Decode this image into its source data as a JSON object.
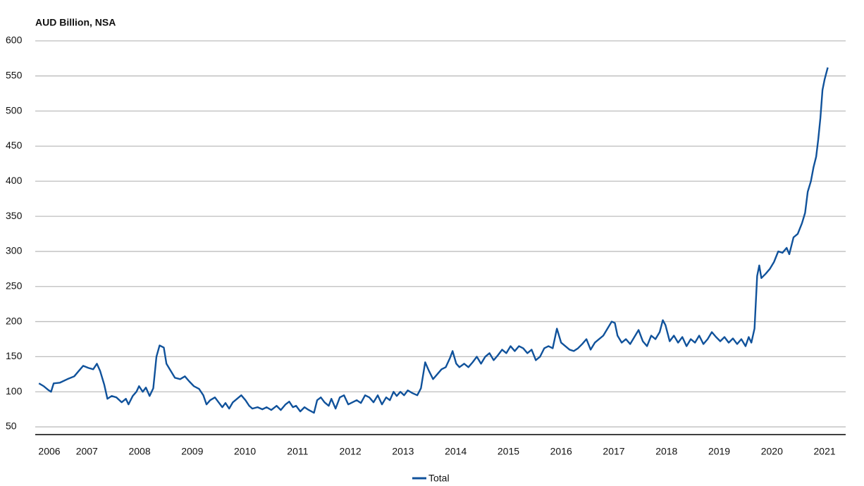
{
  "chart_data": {
    "type": "line",
    "title": "AUD Billion, NSA",
    "xlim": [
      2006.52,
      2021.9
    ],
    "ylim": [
      39,
      600
    ],
    "yticks": [
      50,
      100,
      150,
      200,
      250,
      300,
      350,
      400,
      450,
      500,
      550,
      600
    ],
    "xticks": [
      {
        "value": 2006.5,
        "label": "2006"
      },
      {
        "value": 2007.5,
        "label": "2007"
      },
      {
        "value": 2008.5,
        "label": "2008"
      },
      {
        "value": 2009.5,
        "label": "2009"
      },
      {
        "value": 2010.5,
        "label": "2010"
      },
      {
        "value": 2011.5,
        "label": "2011"
      },
      {
        "value": 2012.5,
        "label": "2012"
      },
      {
        "value": 2013.5,
        "label": "2013"
      },
      {
        "value": 2014.5,
        "label": "2014"
      },
      {
        "value": 2015.5,
        "label": "2015"
      },
      {
        "value": 2016.5,
        "label": "2016"
      },
      {
        "value": 2017.5,
        "label": "2017"
      },
      {
        "value": 2018.5,
        "label": "2018"
      },
      {
        "value": 2019.5,
        "label": "2019"
      },
      {
        "value": 2020.5,
        "label": "2020"
      },
      {
        "value": 2021.5,
        "label": "2021"
      }
    ],
    "grid": true,
    "legend": "bottom",
    "x": [
      2006.59,
      2006.68,
      2006.76,
      2006.82,
      2006.87,
      2006.99,
      2007.13,
      2007.26,
      2007.35,
      2007.43,
      2007.53,
      2007.62,
      2007.69,
      2007.75,
      2007.83,
      2007.89,
      2007.97,
      2008.06,
      2008.16,
      2008.24,
      2008.29,
      2008.37,
      2008.44,
      2008.49,
      2008.56,
      2008.62,
      2008.69,
      2008.76,
      2008.82,
      2008.88,
      2008.96,
      2009.01,
      2009.09,
      2009.17,
      2009.27,
      2009.36,
      2009.44,
      2009.53,
      2009.63,
      2009.71,
      2009.77,
      2009.84,
      2009.93,
      2010.0,
      2010.07,
      2010.13,
      2010.2,
      2010.27,
      2010.35,
      2010.43,
      2010.51,
      2010.58,
      2010.64,
      2010.74,
      2010.83,
      2010.91,
      2011.0,
      2011.1,
      2011.18,
      2011.27,
      2011.34,
      2011.41,
      2011.47,
      2011.55,
      2011.63,
      2011.71,
      2011.81,
      2011.87,
      2011.94,
      2012.01,
      2012.09,
      2012.14,
      2012.22,
      2012.3,
      2012.38,
      2012.46,
      2012.54,
      2012.62,
      2012.7,
      2012.78,
      2012.86,
      2012.94,
      2013.02,
      2013.1,
      2013.18,
      2013.25,
      2013.32,
      2013.38,
      2013.45,
      2013.52,
      2013.59,
      2013.68,
      2013.77,
      2013.84,
      2013.92,
      2013.99,
      2014.07,
      2014.15,
      2014.23,
      2014.31,
      2014.39,
      2014.44,
      2014.51,
      2014.57,
      2014.66,
      2014.74,
      2014.82,
      2014.9,
      2014.98,
      2015.06,
      2015.14,
      2015.22,
      2015.3,
      2015.38,
      2015.46,
      2015.54,
      2015.62,
      2015.7,
      2015.78,
      2015.86,
      2015.94,
      2016.02,
      2016.1,
      2016.18,
      2016.26,
      2016.34,
      2016.42,
      2016.5,
      2016.58,
      2016.66,
      2016.74,
      2016.82,
      2016.9,
      2016.98,
      2017.06,
      2017.14,
      2017.22,
      2017.3,
      2017.38,
      2017.46,
      2017.52,
      2017.57,
      2017.65,
      2017.73,
      2017.81,
      2017.89,
      2017.97,
      2018.05,
      2018.13,
      2018.21,
      2018.29,
      2018.37,
      2018.43,
      2018.48,
      2018.56,
      2018.64,
      2018.72,
      2018.8,
      2018.88,
      2018.96,
      2019.04,
      2019.12,
      2019.2,
      2019.28,
      2019.36,
      2019.44,
      2019.52,
      2019.6,
      2019.68,
      2019.76,
      2019.84,
      2019.92,
      2020.0,
      2020.06,
      2020.11,
      2020.17,
      2020.22,
      2020.26,
      2020.3,
      2020.38,
      2020.46,
      2020.54,
      2020.62,
      2020.7,
      2020.78,
      2020.83,
      2020.91,
      2020.99,
      2021.07,
      2021.13,
      2021.18,
      2021.24,
      2021.29,
      2021.34,
      2021.38,
      2021.42,
      2021.46,
      2021.5,
      2021.56
    ],
    "series": [
      {
        "name": "Total",
        "color": "#10529b",
        "values": [
          112,
          108,
          103,
          100,
          112,
          113,
          118,
          122,
          130,
          137,
          134,
          132,
          140,
          130,
          110,
          90,
          94,
          92,
          85,
          90,
          82,
          94,
          100,
          108,
          100,
          106,
          94,
          105,
          150,
          166,
          163,
          140,
          130,
          120,
          118,
          122,
          115,
          108,
          104,
          95,
          82,
          88,
          92,
          85,
          78,
          84,
          76,
          85,
          90,
          95,
          88,
          80,
          76,
          78,
          75,
          78,
          74,
          80,
          74,
          82,
          86,
          78,
          80,
          72,
          78,
          74,
          70,
          88,
          92,
          85,
          80,
          90,
          76,
          92,
          95,
          82,
          85,
          88,
          84,
          95,
          92,
          85,
          95,
          82,
          92,
          88,
          100,
          94,
          100,
          95,
          102,
          98,
          95,
          105,
          142,
          130,
          118,
          125,
          132,
          135,
          148,
          158,
          140,
          135,
          140,
          135,
          142,
          150,
          140,
          150,
          155,
          145,
          152,
          160,
          155,
          165,
          158,
          165,
          162,
          155,
          160,
          145,
          150,
          162,
          165,
          162,
          190,
          170,
          165,
          160,
          158,
          162,
          168,
          175,
          160,
          170,
          175,
          180,
          190,
          200,
          198,
          180,
          170,
          175,
          168,
          178,
          188,
          172,
          165,
          180,
          175,
          185,
          202,
          195,
          172,
          180,
          170,
          178,
          165,
          175,
          170,
          180,
          168,
          175,
          185,
          178,
          172,
          178,
          170,
          176,
          168,
          175,
          165,
          178,
          170,
          190,
          265,
          280,
          262,
          268,
          275,
          285,
          300,
          298,
          305,
          296,
          320,
          325,
          340,
          355,
          385,
          400,
          420,
          435,
          460,
          490,
          530,
          545,
          562
        ]
      }
    ]
  }
}
